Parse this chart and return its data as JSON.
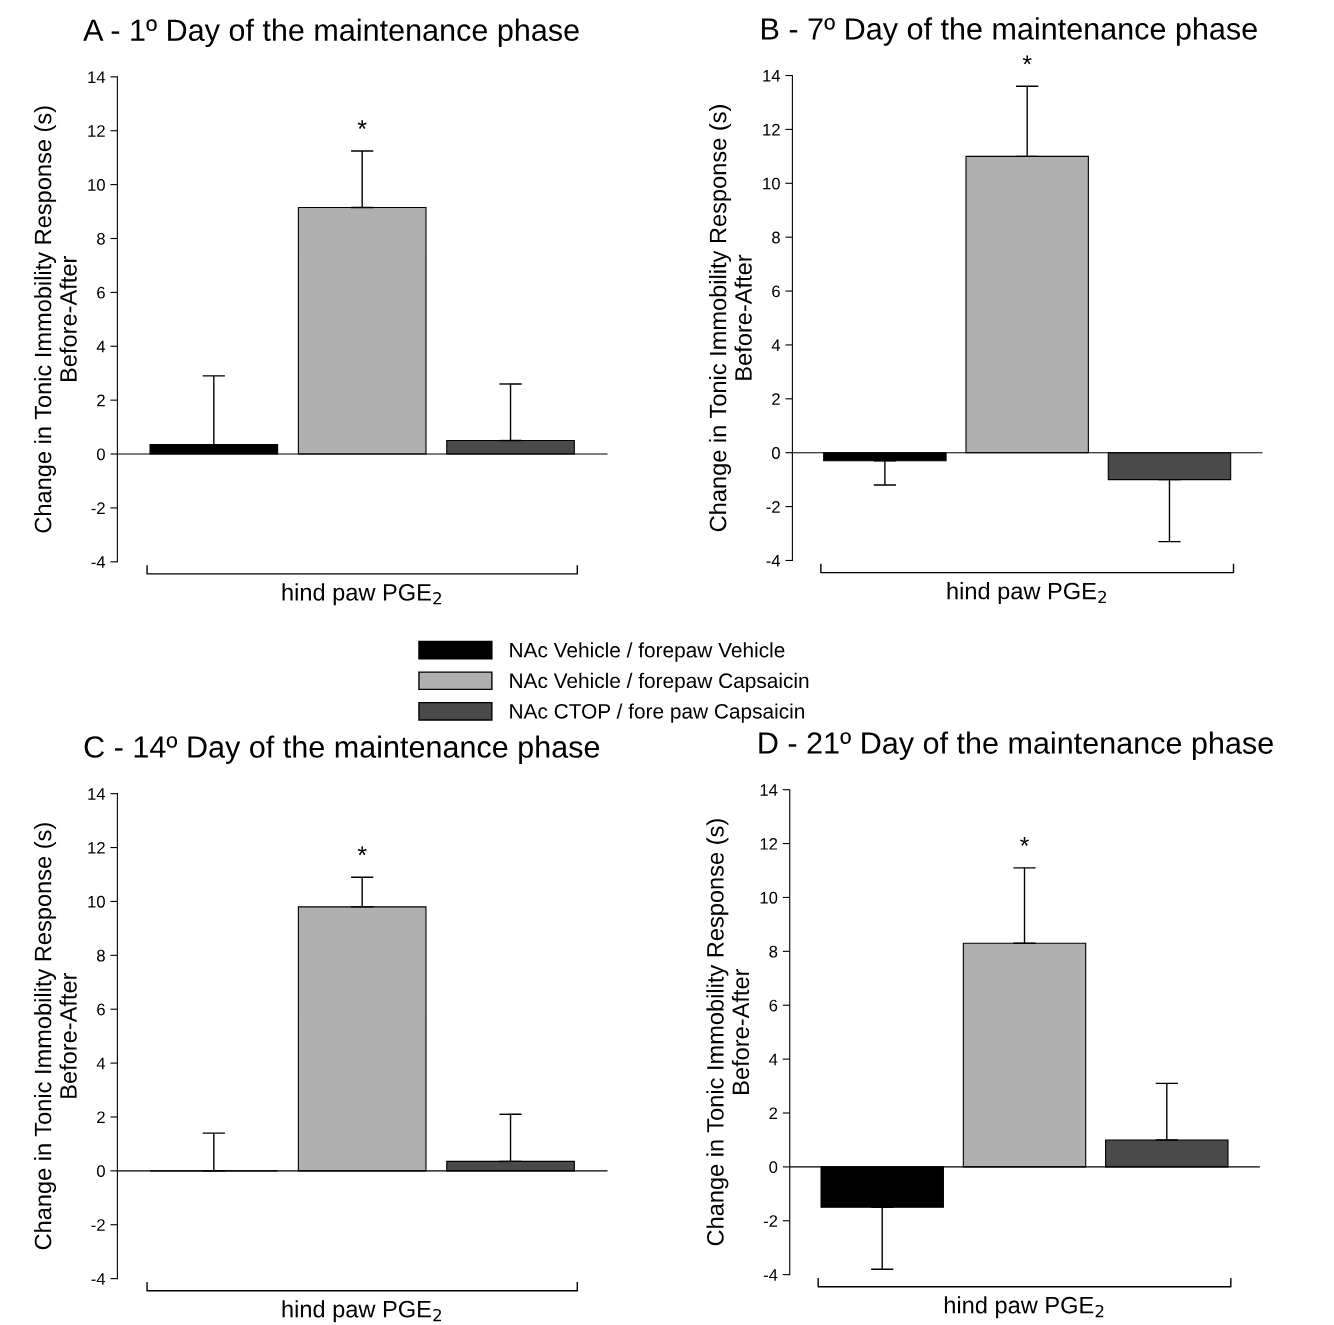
{
  "chart_data": [
    {
      "type": "bar",
      "title": "A - 1º Day of the maintenance phase",
      "xlabel": "hind paw PGE$_{2}$",
      "ylabel": "Change in Tonic Immobility Response (s)\nBefore-After",
      "categories": [
        null,
        null,
        null
      ],
      "legend": "bottom",
      "series": [
        {
          "name": "NAc Vehicle / forepaw Vehicle",
          "color": "#000000",
          "values": [
            0.35,
            null,
            null
          ],
          "errors": [
            [
              0.35,
              2.9
            ],
            null,
            null
          ]
        },
        {
          "name": "NAc Vehicle / forepaw Capsaicin",
          "color": "#b0b0b0",
          "values": [
            null,
            9.15,
            null
          ],
          "errors": [
            null,
            [
              9.15,
              11.25
            ],
            null
          ]
        },
        {
          "name": "NAc CTOP / fore paw Capsaicin",
          "color": "#4a4a4a",
          "values": [
            null,
            null,
            0.5
          ],
          "errors": [
            null,
            null,
            [
              0.5,
              2.6
            ]
          ]
        }
      ],
      "ylim": [
        -4,
        14
      ],
      "yticks": [
        -4,
        -2,
        0,
        2,
        4,
        6,
        8,
        10,
        12,
        14
      ],
      "annotations": [
        "*"
      ]
    },
    {
      "type": "bar",
      "title": "B - 7º Day of the maintenance phase",
      "xlabel": "hind paw PGE$_{2}$",
      "ylabel": "Change in Tonic Immobility Response (s)\nBefore-After",
      "categories": [
        null,
        null,
        null
      ],
      "series": [
        {
          "color": "#000000",
          "values": [
            -0.3,
            null,
            null
          ],
          "errors": [
            [
              -1.2,
              -0.3
            ],
            null,
            null
          ]
        },
        {
          "color": "#b0b0b0",
          "values": [
            null,
            11.0,
            null
          ],
          "errors": [
            null,
            [
              11.0,
              13.6
            ],
            null
          ]
        },
        {
          "color": "#4a4a4a",
          "values": [
            null,
            null,
            -1.0
          ],
          "errors": [
            null,
            null,
            [
              -3.3,
              -1.0
            ]
          ]
        }
      ],
      "ylim": [
        -4,
        14
      ],
      "yticks": [
        -4,
        -2,
        0,
        2,
        4,
        6,
        8,
        10,
        12,
        14
      ],
      "annotations": [
        "*"
      ]
    },
    {
      "type": "bar",
      "title": "C - 14º Day of the maintenance phase",
      "xlabel": "hind paw PGE$_{2}$",
      "ylabel": "Change in Tonic Immobility Response (s)\nBefore-After",
      "categories": [
        null,
        null,
        null
      ],
      "series": [
        {
          "color": "#000000",
          "values": [
            0,
            null,
            null
          ],
          "errors": [
            [
              0,
              1.4
            ],
            null,
            null
          ]
        },
        {
          "color": "#b0b0b0",
          "values": [
            null,
            9.8,
            null
          ],
          "errors": [
            null,
            [
              9.8,
              10.9
            ],
            null
          ]
        },
        {
          "color": "#4a4a4a",
          "values": [
            null,
            null,
            0.35
          ],
          "errors": [
            null,
            null,
            [
              0.35,
              2.1
            ]
          ]
        }
      ],
      "ylim": [
        -4,
        14
      ],
      "yticks": [
        -4,
        -2,
        0,
        2,
        4,
        6,
        8,
        10,
        12,
        14
      ],
      "annotations": [
        "*"
      ]
    },
    {
      "type": "bar",
      "title": "D - 21º Day of the maintenance phase",
      "xlabel": "hind paw PGE$_{2}$",
      "ylabel": "Change in Tonic Immobility Response (s)\nBefore-After",
      "categories": [
        null,
        null,
        null
      ],
      "series": [
        {
          "color": "#000000",
          "values": [
            -1.5,
            null,
            null
          ],
          "errors": [
            [
              -3.8,
              -1.5
            ],
            null,
            null
          ]
        },
        {
          "color": "#b0b0b0",
          "values": [
            null,
            8.3,
            null
          ],
          "errors": [
            null,
            [
              8.3,
              11.1
            ],
            null
          ]
        },
        {
          "color": "#4a4a4a",
          "values": [
            null,
            null,
            1.0
          ],
          "errors": [
            null,
            null,
            [
              1.0,
              3.1
            ]
          ]
        }
      ],
      "ylim": [
        -4,
        14
      ],
      "yticks": [
        -4,
        -2,
        0,
        2,
        4,
        6,
        8,
        10,
        12,
        14
      ],
      "annotations": [
        "*"
      ]
    }
  ]
}
